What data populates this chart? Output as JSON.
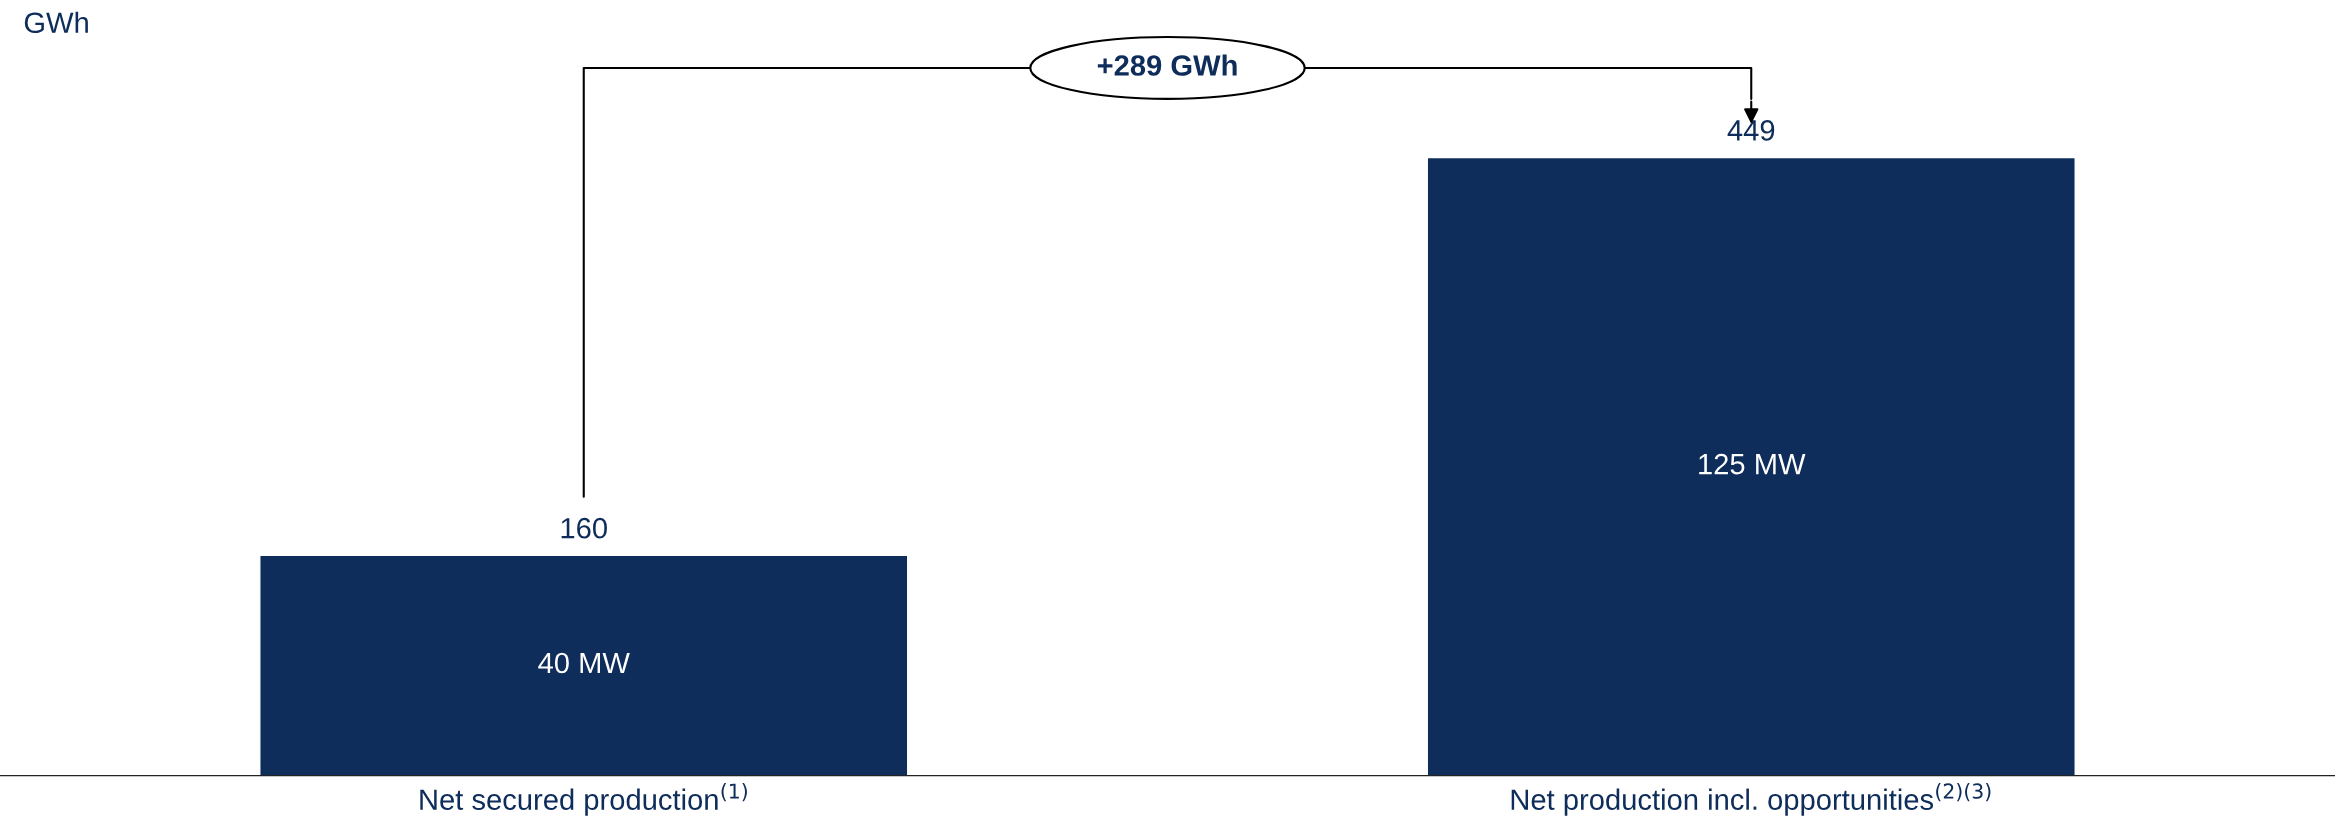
{
  "chart_data": {
    "type": "bar",
    "ylabel": "GWh",
    "categories": [
      "Net secured production$^{(1)}$",
      "Net production incl. opportunities$^{(2)(3)}$"
    ],
    "values": [
      160,
      449
    ],
    "color": "#0e2d5a",
    "data_labels": true,
    "grid": false,
    "legend": false,
    "annotations": [
      "40 MW",
      "125 MW",
      "+289 GWh"
    ]
  }
}
